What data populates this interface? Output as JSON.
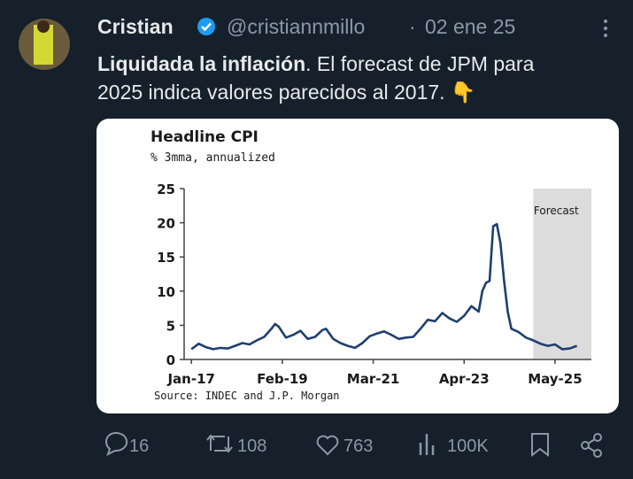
{
  "tweet": {
    "name": "Cristian",
    "handle": "@cristiannmillo",
    "separator": "·",
    "date": "02 ene 25",
    "text_bold": "Liquidada la inflación",
    "text_line1": ". El forecast de JPM para",
    "text_line2": "2025 indica valores parecidos al 2017. 👇",
    "replies": "16",
    "reposts": "108",
    "likes": "763",
    "views": "100K"
  },
  "chart_data": {
    "type": "line",
    "title": "Headline CPI",
    "subtitle": "% 3mma, annualized",
    "source": "Source: INDEC and J.P. Morgan",
    "forecast_label": "Forecast",
    "forecast_start": "2024-11",
    "x": [
      "2017-01",
      "2017-03",
      "2017-05",
      "2017-07",
      "2017-09",
      "2017-11",
      "2018-01",
      "2018-03",
      "2018-05",
      "2018-07",
      "2018-09",
      "2018-11",
      "2018-12",
      "2019-01",
      "2019-03",
      "2019-05",
      "2019-07",
      "2019-09",
      "2019-11",
      "2020-01",
      "2020-02",
      "2020-04",
      "2020-06",
      "2020-08",
      "2020-10",
      "2020-12",
      "2021-02",
      "2021-04",
      "2021-06",
      "2021-08",
      "2021-10",
      "2021-12",
      "2022-02",
      "2022-04",
      "2022-06",
      "2022-08",
      "2022-10",
      "2022-12",
      "2023-02",
      "2023-04",
      "2023-06",
      "2023-08",
      "2023-09",
      "2023-10",
      "2023-11",
      "2023-12",
      "2024-01",
      "2024-02",
      "2024-03",
      "2024-04",
      "2024-05",
      "2024-07",
      "2024-09",
      "2024-11",
      "2025-01",
      "2025-03",
      "2025-05",
      "2025-07",
      "2025-09",
      "2025-11"
    ],
    "series": [
      {
        "name": "Headline CPI",
        "color": "#1f3f6e",
        "values": [
          1.5,
          2.3,
          1.8,
          1.5,
          1.7,
          1.6,
          2.0,
          2.4,
          2.2,
          2.8,
          3.3,
          4.5,
          5.2,
          4.8,
          3.2,
          3.6,
          4.2,
          3.0,
          3.3,
          4.3,
          4.5,
          3.0,
          2.4,
          2.0,
          1.7,
          2.4,
          3.4,
          3.8,
          4.1,
          3.6,
          3.0,
          3.2,
          3.3,
          4.5,
          5.8,
          5.6,
          6.8,
          6.0,
          5.5,
          6.4,
          7.8,
          7.0,
          10.0,
          11.2,
          11.5,
          19.5,
          19.8,
          17.0,
          11.5,
          7.0,
          4.5,
          4.0,
          3.2,
          2.8,
          2.3,
          2.0,
          2.2,
          1.5,
          1.6,
          2.0
        ]
      }
    ],
    "xlim": [
      "2016-11",
      "2026-03"
    ],
    "xticks": [
      {
        "value": "2017-01",
        "label": "Jan-17"
      },
      {
        "value": "2019-02",
        "label": "Feb-19"
      },
      {
        "value": "2021-03",
        "label": "Mar-21"
      },
      {
        "value": "2023-04",
        "label": "Apr-23"
      },
      {
        "value": "2025-05",
        "label": "May-25"
      }
    ],
    "ylim": [
      0,
      25
    ],
    "yticks": [
      0,
      5,
      10,
      15,
      20,
      25
    ]
  }
}
